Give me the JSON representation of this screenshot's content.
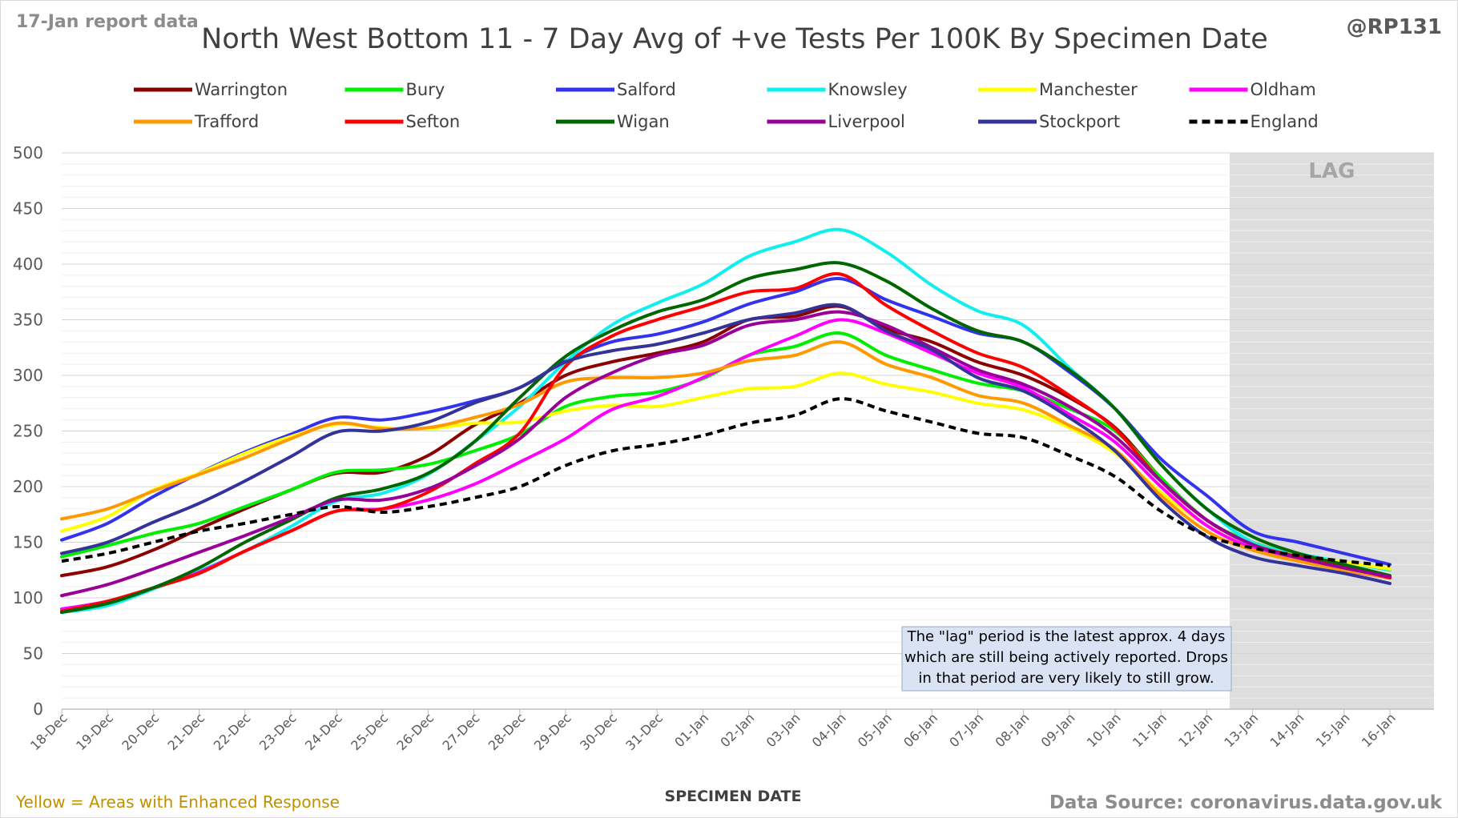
{
  "header": {
    "report_label": "17-Jan report data",
    "handle": "@RP131",
    "enhanced_note": "Yellow = Areas with Enhanced Response",
    "source": "Data Source: coronavirus.data.gov.uk"
  },
  "annotation": {
    "lag_label": "LAG",
    "note_lines": [
      "The \"lag\" period is the latest approx. 4 days",
      "which are still being actively reported.  Drops",
      "in that period are very likely to still grow."
    ]
  },
  "chart_data": {
    "type": "line",
    "title": "North West Bottom 11 - 7 Day Avg of +ve Tests Per 100K By Specimen Date",
    "xlabel": "SPECIMEN DATE",
    "ylabel": "",
    "ylim": [
      0,
      500
    ],
    "yticks": [
      0,
      50,
      100,
      150,
      200,
      250,
      300,
      350,
      400,
      450,
      500
    ],
    "grid": true,
    "legend_position": "top",
    "lag_period": [
      "13-Jan",
      "16-Jan"
    ],
    "categories": [
      "18-Dec",
      "19-Dec",
      "20-Dec",
      "21-Dec",
      "22-Dec",
      "23-Dec",
      "24-Dec",
      "25-Dec",
      "26-Dec",
      "27-Dec",
      "28-Dec",
      "29-Dec",
      "30-Dec",
      "31-Dec",
      "01-Jan",
      "02-Jan",
      "03-Jan",
      "04-Jan",
      "05-Jan",
      "06-Jan",
      "07-Jan",
      "08-Jan",
      "09-Jan",
      "10-Jan",
      "11-Jan",
      "12-Jan",
      "13-Jan",
      "14-Jan",
      "15-Jan",
      "16-Jan"
    ],
    "series": [
      {
        "name": "Warrington",
        "color": "#8b0000",
        "dashed": false,
        "values": [
          120,
          128,
          143,
          162,
          180,
          197,
          212,
          213,
          228,
          255,
          275,
          300,
          312,
          320,
          330,
          350,
          353,
          362,
          342,
          330,
          312,
          300,
          280,
          253,
          208,
          170,
          148,
          135,
          126,
          118
        ]
      },
      {
        "name": "Bury",
        "color": "#00ee00",
        "dashed": false,
        "values": [
          137,
          147,
          158,
          167,
          182,
          197,
          213,
          215,
          220,
          232,
          247,
          272,
          281,
          285,
          297,
          318,
          326,
          338,
          318,
          305,
          293,
          286,
          270,
          250,
          208,
          170,
          150,
          138,
          128,
          120
        ]
      },
      {
        "name": "Salford",
        "color": "#3333ee",
        "dashed": false,
        "values": [
          152,
          167,
          191,
          212,
          231,
          247,
          262,
          260,
          267,
          277,
          289,
          313,
          330,
          337,
          348,
          364,
          375,
          387,
          368,
          353,
          338,
          330,
          303,
          270,
          225,
          192,
          160,
          150,
          140,
          130
        ]
      },
      {
        "name": "Knowsley",
        "color": "#11eeee",
        "dashed": false,
        "values": [
          87,
          93,
          108,
          124,
          142,
          164,
          187,
          194,
          211,
          240,
          272,
          312,
          345,
          365,
          382,
          407,
          420,
          431,
          411,
          381,
          358,
          345,
          307,
          270,
          220,
          180,
          150,
          140,
          132,
          125
        ]
      },
      {
        "name": "Manchester",
        "color": "#ffff00",
        "dashed": false,
        "values": [
          160,
          173,
          197,
          212,
          230,
          245,
          256,
          253,
          252,
          257,
          258,
          268,
          273,
          272,
          280,
          288,
          290,
          302,
          292,
          285,
          275,
          269,
          253,
          230,
          195,
          165,
          145,
          138,
          132,
          126
        ]
      },
      {
        "name": "Oldham",
        "color": "#ff00ff",
        "dashed": false,
        "values": [
          90,
          97,
          109,
          123,
          142,
          160,
          178,
          180,
          188,
          202,
          222,
          243,
          269,
          281,
          298,
          318,
          335,
          350,
          338,
          320,
          302,
          289,
          265,
          240,
          200,
          165,
          145,
          135,
          125,
          118
        ]
      },
      {
        "name": "Trafford",
        "color": "#ff9900",
        "dashed": false,
        "values": [
          171,
          180,
          196,
          211,
          226,
          243,
          257,
          252,
          253,
          262,
          274,
          294,
          298,
          298,
          302,
          313,
          318,
          330,
          310,
          298,
          282,
          275,
          255,
          233,
          192,
          160,
          143,
          133,
          125,
          118
        ]
      },
      {
        "name": "Sefton",
        "color": "#ff0000",
        "dashed": false,
        "values": [
          88,
          97,
          109,
          122,
          142,
          160,
          178,
          180,
          195,
          220,
          248,
          308,
          335,
          350,
          362,
          375,
          378,
          391,
          363,
          340,
          320,
          307,
          282,
          252,
          205,
          170,
          148,
          137,
          128,
          118
        ]
      },
      {
        "name": "Wigan",
        "color": "#006600",
        "dashed": false,
        "values": [
          87,
          95,
          109,
          127,
          150,
          170,
          190,
          198,
          212,
          240,
          280,
          317,
          340,
          357,
          368,
          387,
          395,
          401,
          385,
          360,
          340,
          330,
          305,
          270,
          220,
          180,
          155,
          140,
          130,
          120
        ]
      },
      {
        "name": "Liverpool",
        "color": "#990099",
        "dashed": false,
        "values": [
          102,
          112,
          126,
          141,
          156,
          172,
          188,
          188,
          198,
          218,
          243,
          280,
          302,
          318,
          327,
          345,
          350,
          357,
          345,
          325,
          305,
          292,
          272,
          245,
          205,
          170,
          148,
          136,
          127,
          119
        ]
      },
      {
        "name": "Stockport",
        "color": "#333399",
        "dashed": false,
        "values": [
          140,
          150,
          168,
          185,
          205,
          227,
          249,
          250,
          258,
          275,
          289,
          312,
          322,
          328,
          338,
          350,
          356,
          363,
          340,
          323,
          298,
          286,
          262,
          232,
          188,
          155,
          137,
          129,
          122,
          113
        ]
      },
      {
        "name": "England",
        "color": "#000000",
        "dashed": true,
        "values": [
          133,
          140,
          150,
          160,
          167,
          175,
          182,
          177,
          182,
          190,
          200,
          219,
          232,
          238,
          246,
          257,
          264,
          279,
          268,
          258,
          248,
          244,
          228,
          209,
          178,
          156,
          145,
          138,
          133,
          129
        ]
      }
    ]
  }
}
